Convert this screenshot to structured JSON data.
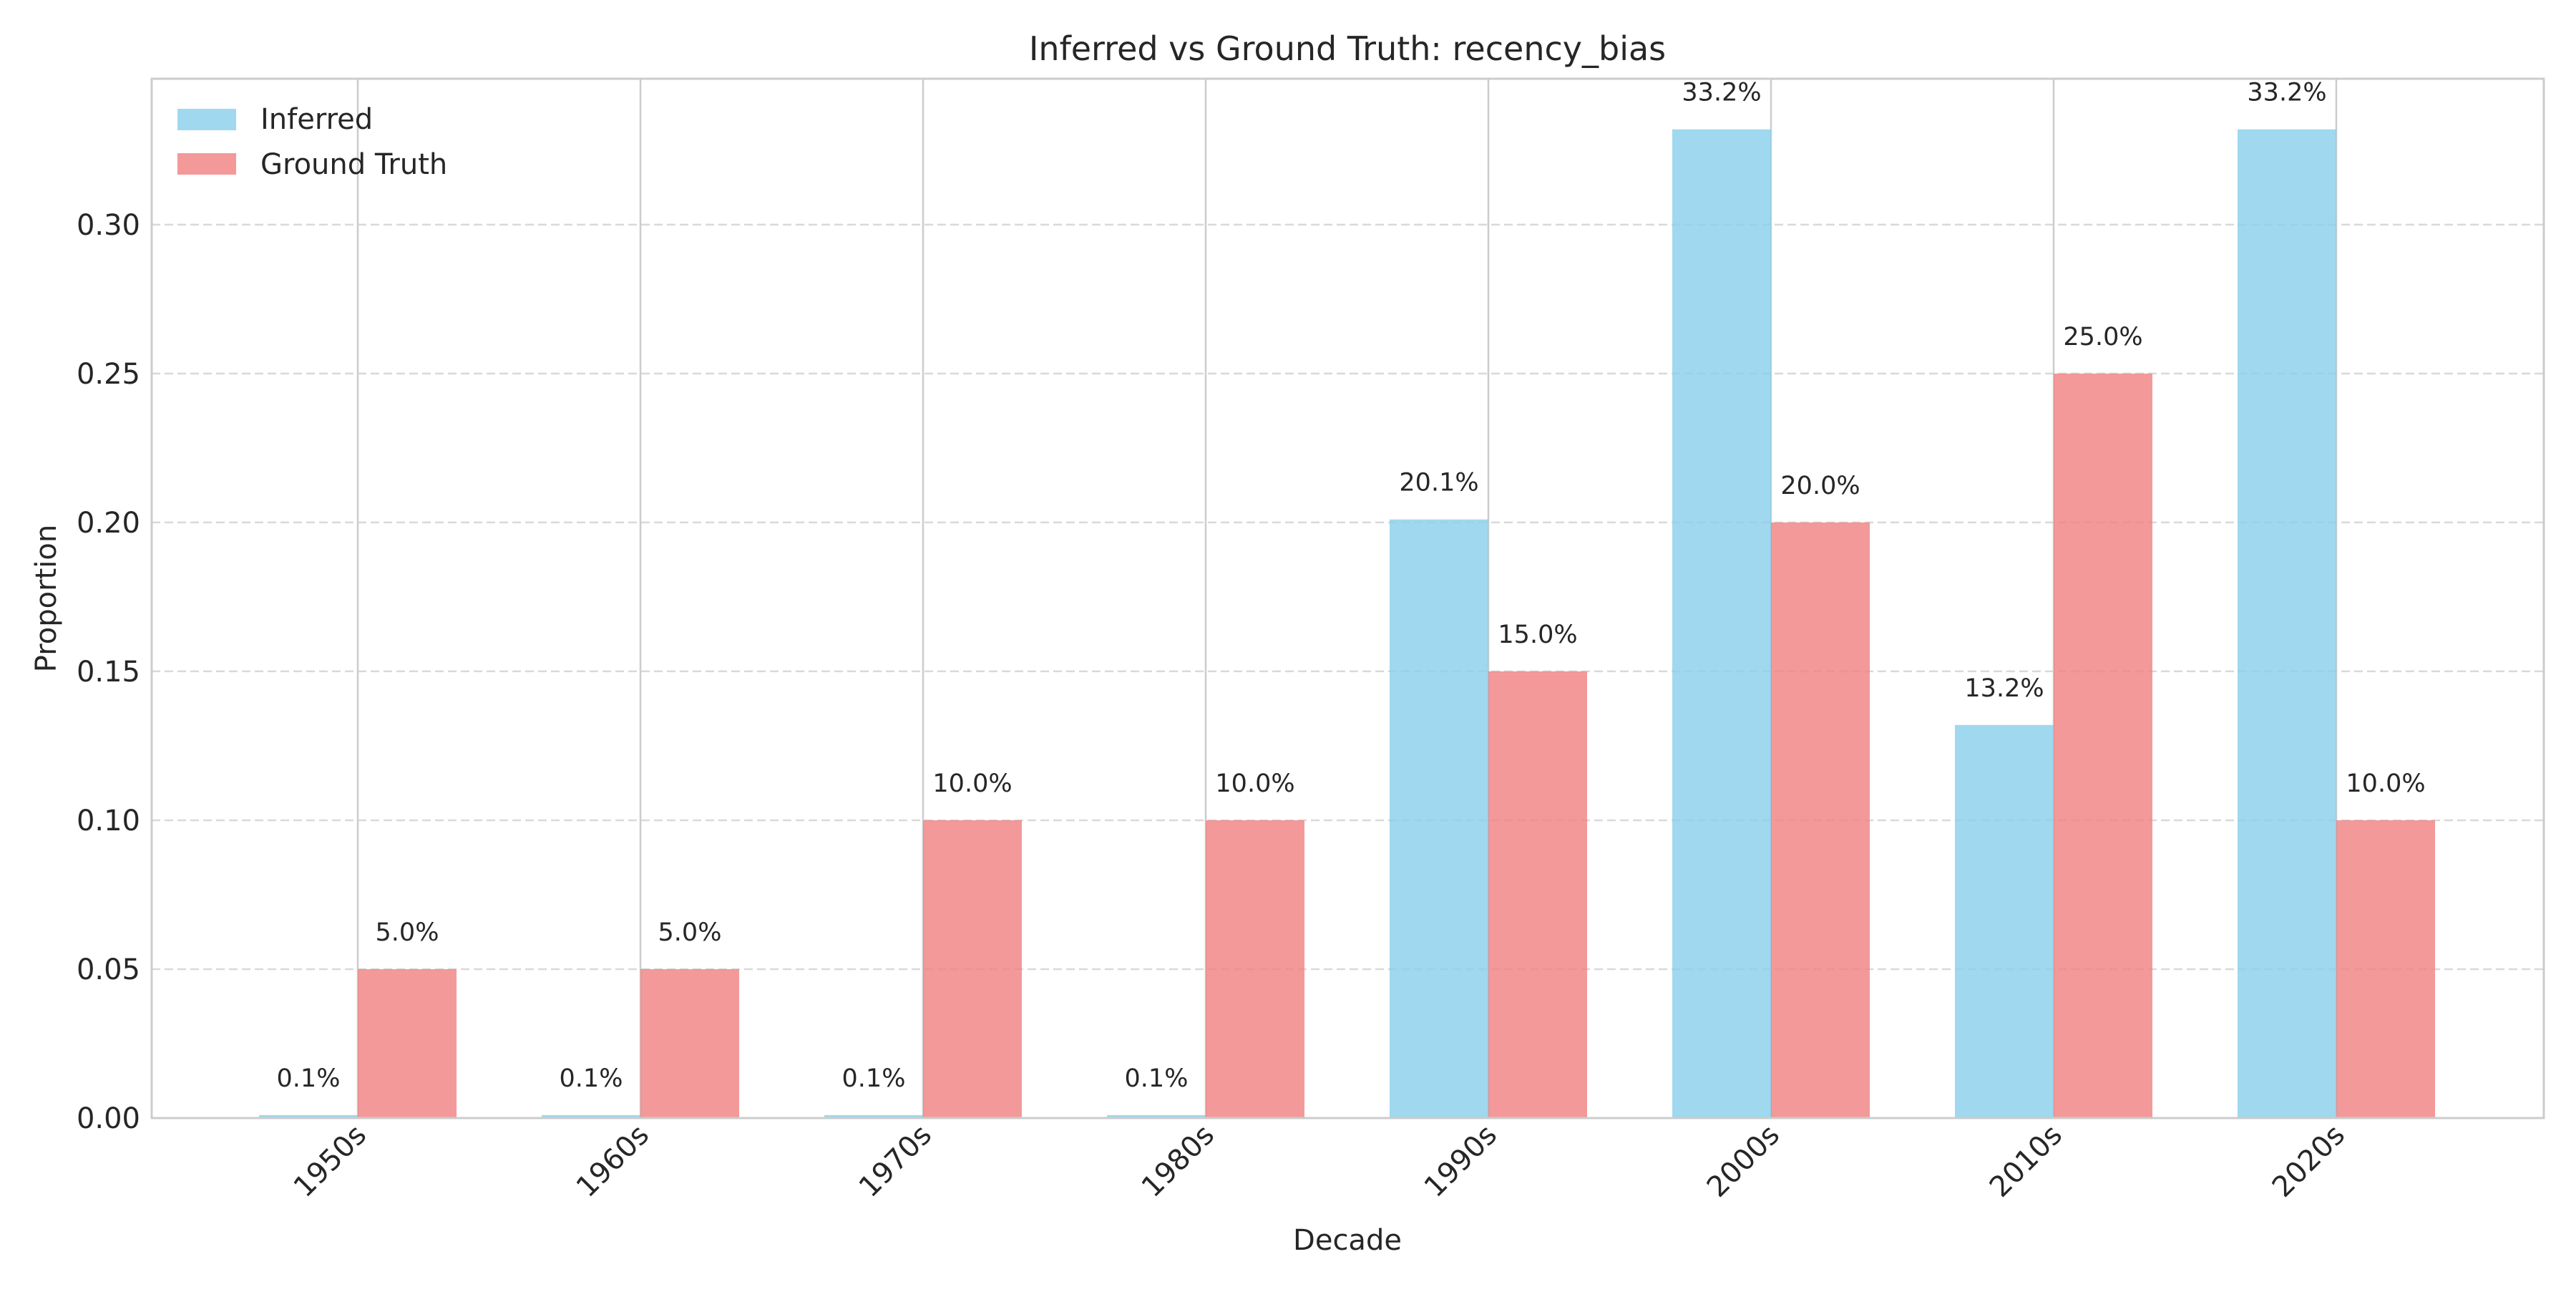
{
  "chart_data": {
    "type": "bar",
    "title": "Inferred vs Ground Truth: recency_bias",
    "xlabel": "Decade",
    "ylabel": "Proportion",
    "categories": [
      "1950s",
      "1960s",
      "1970s",
      "1980s",
      "1990s",
      "2000s",
      "2010s",
      "2020s"
    ],
    "series": [
      {
        "name": "Inferred",
        "color": "#87CEEB",
        "values": [
          0.001,
          0.001,
          0.001,
          0.001,
          0.201,
          0.332,
          0.132,
          0.332
        ],
        "labels": [
          "0.1%",
          "0.1%",
          "0.1%",
          "0.1%",
          "20.1%",
          "33.2%",
          "13.2%",
          "33.2%"
        ]
      },
      {
        "name": "Ground Truth",
        "color": "#F08080",
        "values": [
          0.05,
          0.05,
          0.1,
          0.1,
          0.15,
          0.2,
          0.25,
          0.1
        ],
        "labels": [
          "5.0%",
          "5.0%",
          "10.0%",
          "10.0%",
          "15.0%",
          "20.0%",
          "25.0%",
          "10.0%"
        ]
      }
    ],
    "ylim": [
      0,
      0.349
    ],
    "yticks": [
      "0.00",
      "0.05",
      "0.10",
      "0.15",
      "0.20",
      "0.25",
      "0.30"
    ],
    "grid": true,
    "legend_position": "top-left"
  }
}
